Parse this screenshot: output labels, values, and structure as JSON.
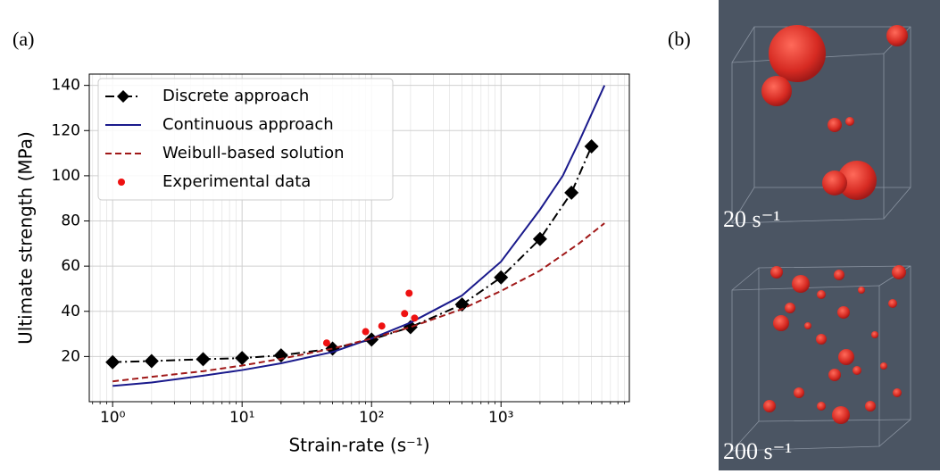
{
  "chart_data": {
    "type": "line",
    "xlabel": "Strain-rate (s⁻¹)",
    "ylabel": "Ultimate strength (MPa)",
    "xscale": "log",
    "xlim": [
      0.66,
      9800
    ],
    "ylim": [
      0,
      145
    ],
    "xticks": [
      {
        "value": 1,
        "label": "10⁰"
      },
      {
        "value": 10,
        "label": "10¹"
      },
      {
        "value": 100,
        "label": "10²"
      },
      {
        "value": 1000,
        "label": "10³"
      }
    ],
    "yticks": [
      20,
      40,
      60,
      80,
      100,
      120,
      140
    ],
    "grid": true,
    "minor_grid": true,
    "legend": "upper left",
    "series": [
      {
        "name": "Discrete approach",
        "color": "#000000",
        "style": "dashdot",
        "marker": "diamond",
        "x": [
          1,
          2,
          5,
          10,
          20,
          50,
          100,
          200,
          500,
          1000,
          2000,
          3500,
          5000
        ],
        "values": [
          17.5,
          18,
          18.8,
          19.3,
          20.5,
          23.5,
          27.5,
          33,
          43,
          55,
          72,
          92.5,
          113
        ]
      },
      {
        "name": "Continuous approach",
        "color": "#1a1a8c",
        "style": "solid",
        "x": [
          1,
          2,
          5,
          10,
          20,
          50,
          100,
          200,
          500,
          1000,
          2000,
          3000,
          4000,
          6300
        ],
        "values": [
          7,
          8.5,
          11.5,
          14,
          17,
          22,
          28,
          35,
          47,
          62,
          85,
          100,
          115,
          140
        ]
      },
      {
        "name": "Weibull-based solution",
        "color": "#a01818",
        "style": "dashed",
        "x": [
          1,
          2,
          5,
          10,
          20,
          50,
          100,
          200,
          500,
          1000,
          2000,
          4000,
          6300
        ],
        "values": [
          9,
          11,
          13.5,
          16,
          19,
          23.5,
          28,
          33,
          41,
          49,
          58,
          70,
          79
        ]
      },
      {
        "name": "Experimental data",
        "color": "#ee1111",
        "style": "scatter",
        "x": [
          45,
          90,
          120,
          180,
          195,
          215
        ],
        "values": [
          26,
          31,
          33.5,
          39,
          48,
          37
        ]
      }
    ]
  },
  "panel_labels": [
    "(a)",
    "(b)"
  ],
  "images": [
    {
      "label": "20 s⁻¹"
    },
    {
      "label": "200 s⁻¹"
    }
  ]
}
